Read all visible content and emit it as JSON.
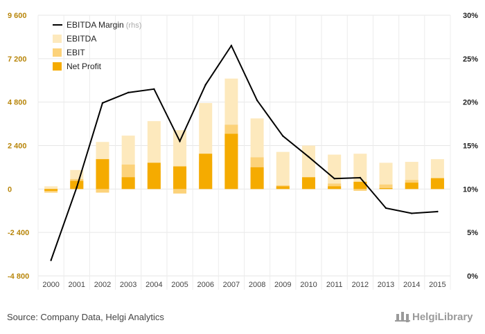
{
  "chart_data": {
    "type": "bar",
    "categories": [
      "2000",
      "2001",
      "2002",
      "2003",
      "2004",
      "2005",
      "2006",
      "2007",
      "2008",
      "2009",
      "2010",
      "2011",
      "2012",
      "2013",
      "2014",
      "2015"
    ],
    "series": [
      {
        "name": "EBITDA",
        "kind": "bar",
        "axis": "left",
        "color": "#fde9bd",
        "values": [
          150,
          1050,
          2600,
          2950,
          3750,
          3250,
          4750,
          6100,
          3900,
          2050,
          2400,
          1900,
          1950,
          1450,
          1500,
          1650
        ]
      },
      {
        "name": "EBIT",
        "kind": "bar",
        "axis": "left",
        "color": "#fcd27a",
        "values": [
          -200,
          550,
          -200,
          1350,
          1000,
          -250,
          1500,
          3550,
          1750,
          200,
          600,
          300,
          -100,
          250,
          500,
          550
        ]
      },
      {
        "name": "Net Profit",
        "kind": "bar",
        "axis": "left",
        "color": "#f5ab00",
        "values": [
          -100,
          450,
          1650,
          650,
          1450,
          1250,
          1950,
          3050,
          1200,
          150,
          650,
          150,
          400,
          50,
          350,
          600
        ]
      },
      {
        "name": "EBITDA Margin",
        "name_suffix": "(rhs)",
        "kind": "line",
        "axis": "right",
        "color": "#000000",
        "values": [
          1.8,
          10.2,
          19.9,
          21.1,
          21.5,
          15.5,
          22.0,
          26.5,
          20.2,
          16.1,
          13.7,
          11.2,
          11.3,
          7.8,
          7.2,
          7.4
        ]
      }
    ],
    "y_left": {
      "ylim": [
        -4800,
        9600
      ],
      "ticks": [
        -4800,
        -2400,
        0,
        2400,
        4800,
        7200,
        9600
      ],
      "tick_labels": [
        "-4 800",
        "-2 400",
        "0",
        "2 400",
        "4 800",
        "7 200",
        "9 600"
      ]
    },
    "y_right": {
      "ylim": [
        0,
        30
      ],
      "ticks": [
        0,
        5,
        10,
        15,
        20,
        25,
        30
      ],
      "tick_labels": [
        "0%",
        "5%",
        "10%",
        "15%",
        "20%",
        "25%",
        "30%"
      ]
    },
    "grid": true,
    "legend_position": "top-left",
    "title": "",
    "xlabel": "",
    "ylabel": ""
  },
  "footer": {
    "source": "Source: Company Data, Helgi Analytics",
    "brand": "HelgiLibrary"
  }
}
